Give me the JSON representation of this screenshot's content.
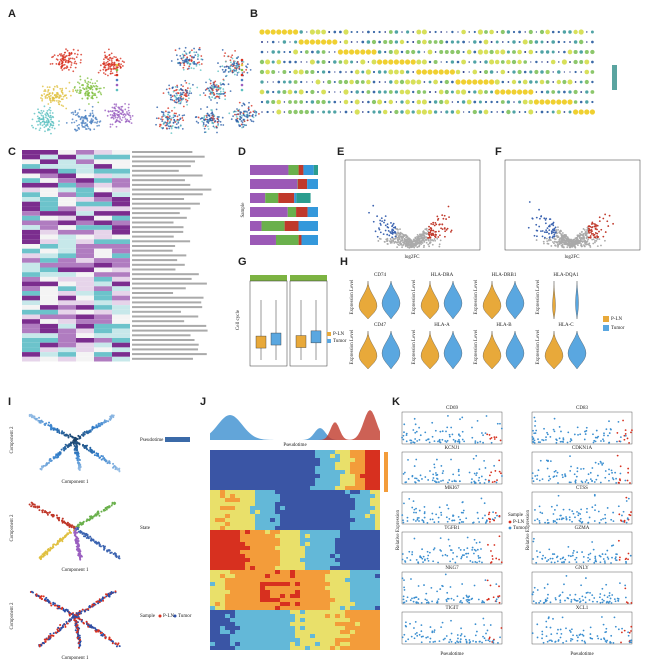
{
  "letters": [
    "A",
    "B",
    "C",
    "D",
    "E",
    "F",
    "G",
    "H",
    "I",
    "J",
    "K"
  ],
  "groups": [
    "P-LN",
    "Tumor"
  ],
  "d_ylabel": "Sample",
  "e_xlabel": "log2FC",
  "f_xlabel": "log2FC",
  "g_ylabel": "Cell cycle",
  "h_ylabel": "Expression Level",
  "h_genes": [
    "CD74",
    "HLA-DRA",
    "HLA-DRB1",
    "HLA-DQA1",
    "CD47",
    "HLA-A",
    "HLA-B",
    "HLA-C"
  ],
  "i_labels": {
    "pseudotime": "Pseudotime",
    "state": "State",
    "sample": "Sample",
    "x": "Component 1",
    "y": "Component 2"
  },
  "j_xlabel": "Pseudotime",
  "k_genes_left": [
    "CD69",
    "KCNJ1",
    "MKI67",
    "TGFB1",
    "NKG7",
    "TIGIT"
  ],
  "k_genes_right": [
    "CD83",
    "CDKN1A",
    "CTSS",
    "GZMA",
    "GNLY",
    "XCL1"
  ],
  "k_xlabel": "Pseudotime",
  "k_legend_title": "Sample",
  "k_ylabel": "Relative Expression"
}
